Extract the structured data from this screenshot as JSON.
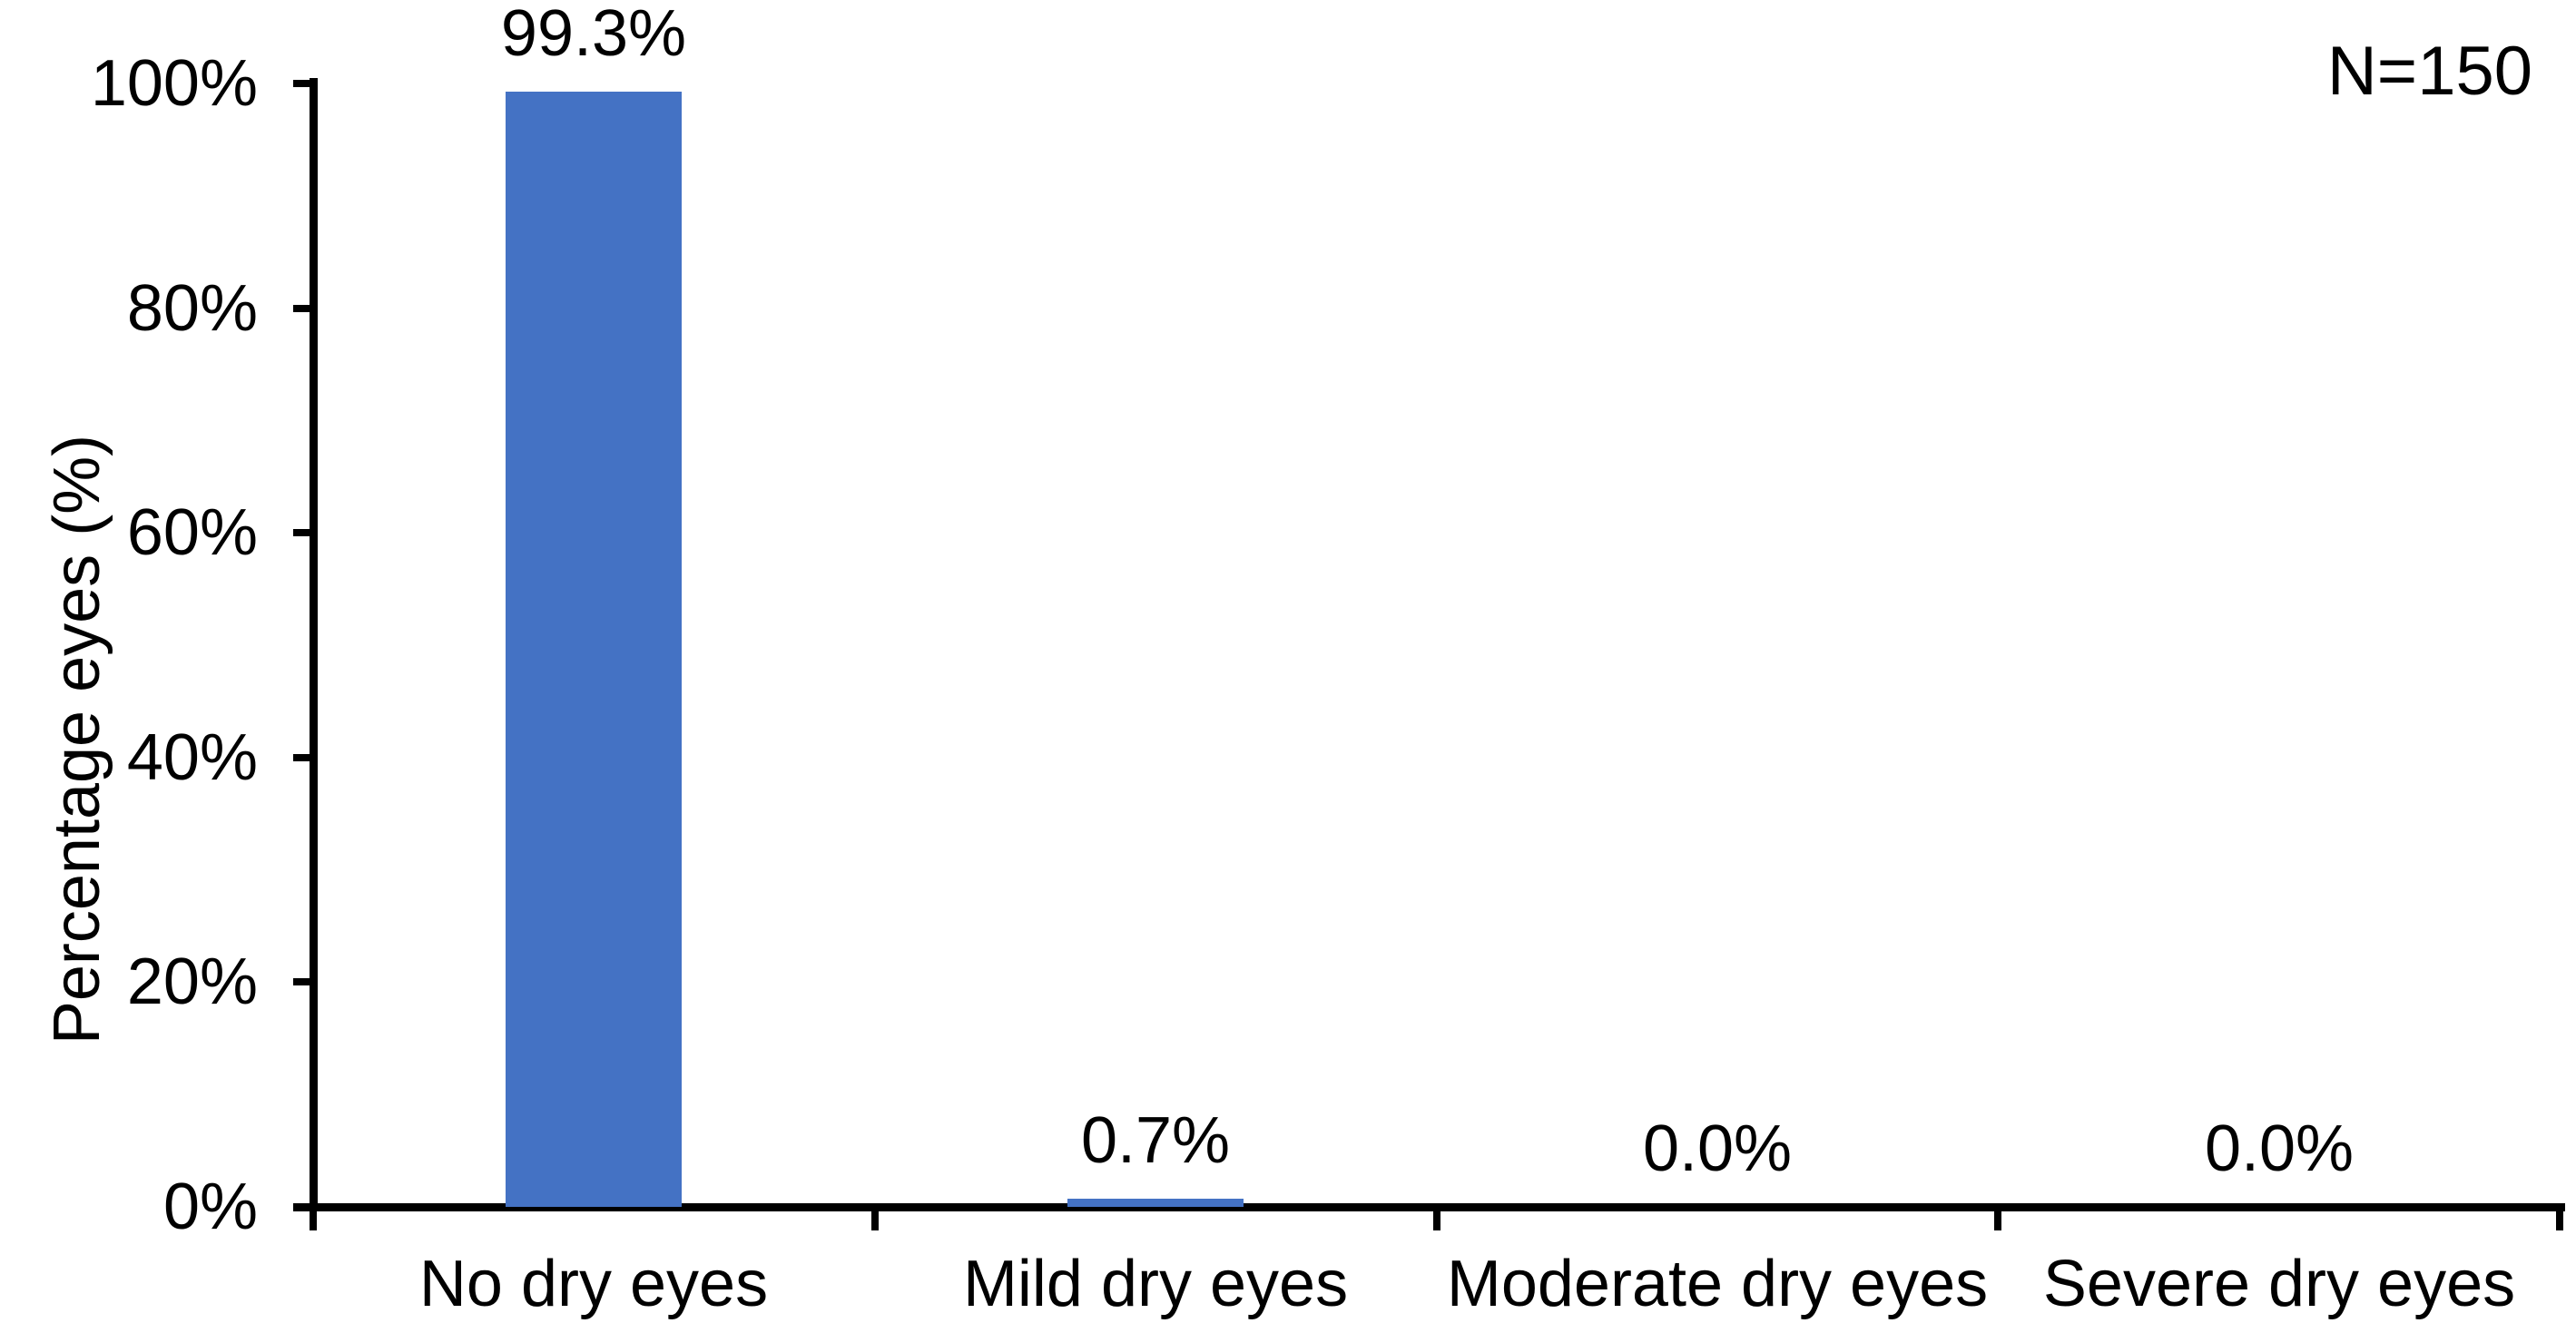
{
  "chart_data": {
    "type": "bar",
    "categories": [
      "No dry eyes",
      "Mild dry eyes",
      "Moderate dry eyes",
      "Severe dry eyes"
    ],
    "values": [
      99.3,
      0.7,
      0.0,
      0.0
    ],
    "value_labels": [
      "99.3%",
      "0.7%",
      "0.0%",
      "0.0%"
    ],
    "title": "",
    "xlabel": "",
    "ylabel": "Percentage eyes (%)",
    "ylim": [
      0,
      100
    ],
    "y_ticks": [
      0,
      20,
      40,
      60,
      80,
      100
    ],
    "y_tick_labels": [
      "0%",
      "20%",
      "40%",
      "60%",
      "80%",
      "100%"
    ],
    "annotation": "N=150",
    "bar_color": "#4472C4",
    "axis_color": "#000000",
    "text_color": "#000000",
    "background_color": "#FFFFFF",
    "grid": false,
    "legend": false
  }
}
